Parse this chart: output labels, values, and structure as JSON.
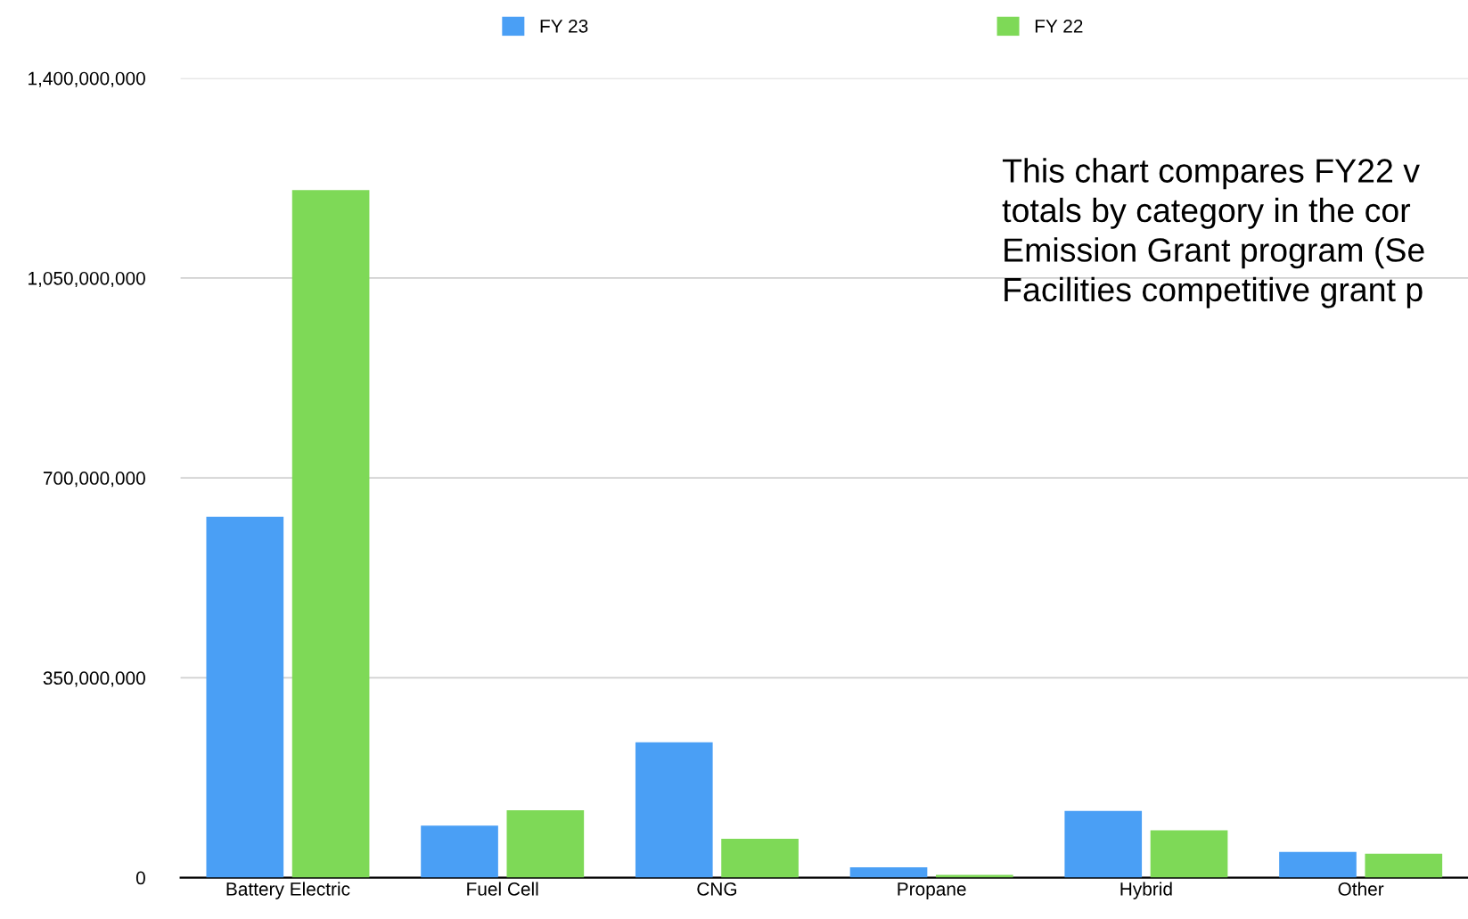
{
  "chart_data": {
    "type": "bar",
    "categories": [
      "Battery Electric",
      "Fuel Cell",
      "CNG",
      "Propane",
      "Hybrid",
      "Other"
    ],
    "series": [
      {
        "name": "FY 23",
        "color": "#4a9ff5",
        "values": [
          632000000,
          91000000,
          237000000,
          18000000,
          117000000,
          45000000
        ]
      },
      {
        "name": "FY 22",
        "color": "#7ed957",
        "values": [
          1204000000,
          118000000,
          68000000,
          5000000,
          83000000,
          42000000
        ]
      }
    ],
    "ylim": [
      0,
      1400000000
    ],
    "yticks": [
      {
        "value": 0,
        "label": "0"
      },
      {
        "value": 350000000,
        "label": "350,000,000"
      },
      {
        "value": 700000000,
        "label": "700,000,000"
      },
      {
        "value": 1050000000,
        "label": "1,050,000,000"
      },
      {
        "value": 1400000000,
        "label": "1,400,000,000"
      }
    ],
    "grid": "y",
    "legend": "top",
    "annotations": [
      "This chart compares FY22 v\ntotals by category in the cor\nEmission Grant program (Se\nFacilities competitive grant p"
    ]
  }
}
